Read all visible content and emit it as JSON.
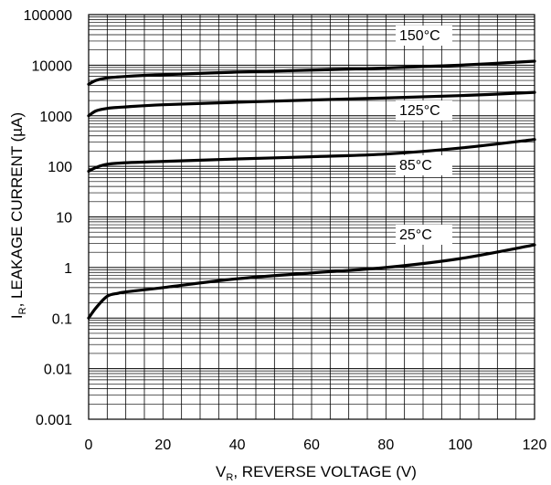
{
  "chart_data": {
    "type": "line",
    "x_axis": {
      "label_main": "V",
      "label_sub": "R",
      "label_rest": ", REVERSE VOLTAGE (V)",
      "range": [
        0,
        120
      ],
      "ticks": [
        "0",
        "20",
        "40",
        "60",
        "80",
        "100",
        "120"
      ],
      "tick_values": [
        0,
        20,
        40,
        60,
        80,
        100,
        120
      ]
    },
    "y_axis": {
      "label_main": "I",
      "label_sub": "R",
      "label_rest": ", LEAKAGE CURRENT (µA)",
      "scale": "log",
      "range": [
        0.001,
        100000
      ],
      "ticks": [
        "0.001",
        "0.01",
        "0.1",
        "1",
        "10",
        "100",
        "1000",
        "10000",
        "100000"
      ],
      "tick_values": [
        0.001,
        0.01,
        0.1,
        1,
        10,
        100,
        1000,
        10000,
        100000
      ]
    },
    "grid": true,
    "series": [
      {
        "name": "150°C",
        "x": [
          0,
          2,
          5,
          10,
          20,
          40,
          60,
          80,
          100,
          120
        ],
        "y": [
          4200,
          5000,
          5600,
          6000,
          6500,
          7300,
          8000,
          8800,
          10000,
          12000
        ]
      },
      {
        "name": "125°C",
        "x": [
          0,
          2,
          5,
          10,
          20,
          40,
          60,
          80,
          100,
          120
        ],
        "y": [
          1000,
          1250,
          1400,
          1500,
          1650,
          1850,
          2050,
          2250,
          2500,
          2900
        ]
      },
      {
        "name": "85°C",
        "x": [
          0,
          2,
          5,
          10,
          20,
          40,
          60,
          80,
          100,
          120
        ],
        "y": [
          80,
          95,
          110,
          118,
          125,
          140,
          155,
          175,
          230,
          340
        ]
      },
      {
        "name": "25°C",
        "x": [
          0,
          2,
          5,
          8,
          10,
          20,
          40,
          60,
          80,
          100,
          120
        ],
        "y": [
          0.1,
          0.16,
          0.27,
          0.31,
          0.33,
          0.4,
          0.6,
          0.78,
          1.0,
          1.5,
          2.8
        ]
      }
    ]
  }
}
